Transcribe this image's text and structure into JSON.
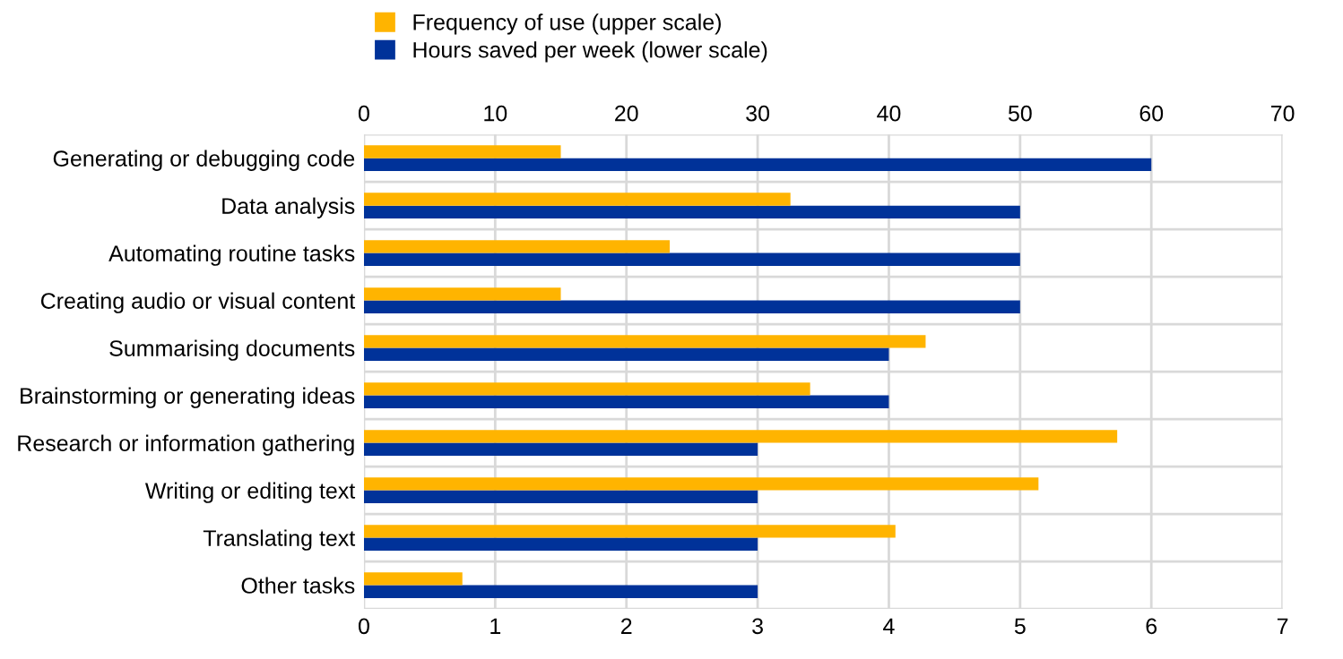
{
  "chart_data": {
    "type": "bar",
    "orientation": "horizontal",
    "categories": [
      "Generating or debugging code",
      "Data analysis",
      "Automating routine tasks",
      "Creating audio or visual content",
      "Summarising documents",
      "Brainstorming or generating ideas",
      "Research or information gathering",
      "Writing or editing text",
      "Translating text",
      "Other tasks"
    ],
    "series": [
      {
        "name": "Frequency of use (upper scale)",
        "color": "#ffb400",
        "axis": "x2",
        "values": [
          15,
          32.5,
          23.3,
          15,
          42.8,
          34,
          57.4,
          51.4,
          40.5,
          7.5
        ]
      },
      {
        "name": "Hours saved per week (lower scale)",
        "color": "#003299",
        "values": [
          6,
          5,
          5,
          5,
          4,
          4,
          3,
          3,
          3,
          3
        ]
      }
    ],
    "xlim": [
      0,
      7
    ],
    "xticks": [
      0,
      1,
      2,
      3,
      4,
      5,
      6,
      7
    ],
    "x2lim": [
      0,
      70
    ],
    "x2ticks": [
      0,
      10,
      20,
      30,
      40,
      50,
      60,
      70
    ],
    "grid": true,
    "legend": "top left"
  }
}
